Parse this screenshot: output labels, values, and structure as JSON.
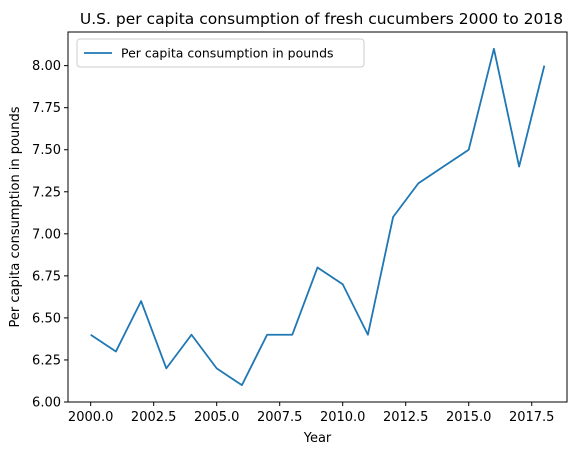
{
  "chart_data": {
    "type": "line",
    "title": "U.S. per capita consumption of fresh cucumbers 2000 to 2018",
    "xlabel": "Year",
    "ylabel": "Per capita consumption in pounds",
    "xlim": [
      1999.1,
      2018.9
    ],
    "ylim": [
      6.0,
      8.2
    ],
    "x_ticks": [
      2000.0,
      2002.5,
      2005.0,
      2007.5,
      2010.0,
      2012.5,
      2015.0,
      2017.5
    ],
    "x_tick_labels": [
      "2000.0",
      "2002.5",
      "2005.0",
      "2007.5",
      "2010.0",
      "2012.5",
      "2015.0",
      "2017.5"
    ],
    "y_ticks": [
      6.0,
      6.25,
      6.5,
      6.75,
      7.0,
      7.25,
      7.5,
      7.75,
      8.0
    ],
    "y_tick_labels": [
      "6.00",
      "6.25",
      "6.50",
      "6.75",
      "7.00",
      "7.25",
      "7.50",
      "7.75",
      "8.00"
    ],
    "grid": false,
    "legend_position": "upper-left",
    "series": [
      {
        "name": "Per capita consumption in pounds",
        "color": "#1f77b4",
        "x": [
          2000,
          2001,
          2002,
          2003,
          2004,
          2005,
          2006,
          2007,
          2008,
          2009,
          2010,
          2011,
          2012,
          2013,
          2014,
          2015,
          2016,
          2017,
          2018
        ],
        "values": [
          6.4,
          6.3,
          6.6,
          6.2,
          6.4,
          6.2,
          6.1,
          6.4,
          6.4,
          6.8,
          6.7,
          6.4,
          7.1,
          7.3,
          7.4,
          7.5,
          8.1,
          7.4,
          8.0
        ]
      }
    ]
  }
}
